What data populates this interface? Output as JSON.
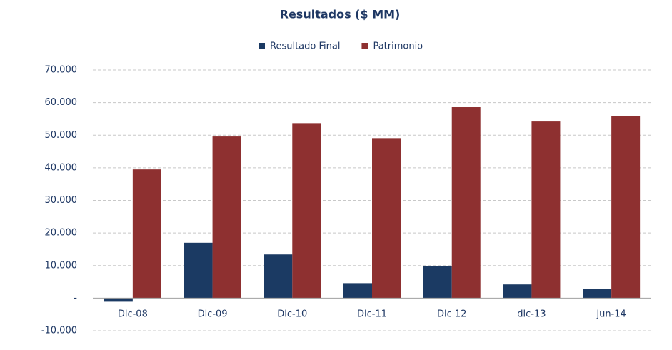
{
  "chart_data": {
    "type": "bar",
    "title": "Resultados ($ MM)",
    "categories": [
      "Dic-08",
      "Dic-09",
      "Dic-10",
      "Dic-11",
      "Dic 12",
      "dic-13",
      "jun-14"
    ],
    "series": [
      {
        "name": "Resultado Final",
        "color": "#1b3a63",
        "values": [
          -1100,
          17000,
          13400,
          4600,
          9900,
          4200,
          2900
        ]
      },
      {
        "name": "Patrimonio",
        "color": "#8e3030",
        "values": [
          39500,
          49600,
          53700,
          49100,
          58600,
          54200,
          55900
        ]
      }
    ],
    "ylim": [
      -10000,
      70000
    ],
    "yticks": [
      {
        "value": -10000,
        "label": "-10.000"
      },
      {
        "value": 0,
        "label": "-"
      },
      {
        "value": 10000,
        "label": "10.000"
      },
      {
        "value": 20000,
        "label": "20.000"
      },
      {
        "value": 30000,
        "label": "30.000"
      },
      {
        "value": 40000,
        "label": "40.000"
      },
      {
        "value": 50000,
        "label": "50.000"
      },
      {
        "value": 60000,
        "label": "60.000"
      },
      {
        "value": 70000,
        "label": "70.000"
      }
    ],
    "grid": true
  }
}
